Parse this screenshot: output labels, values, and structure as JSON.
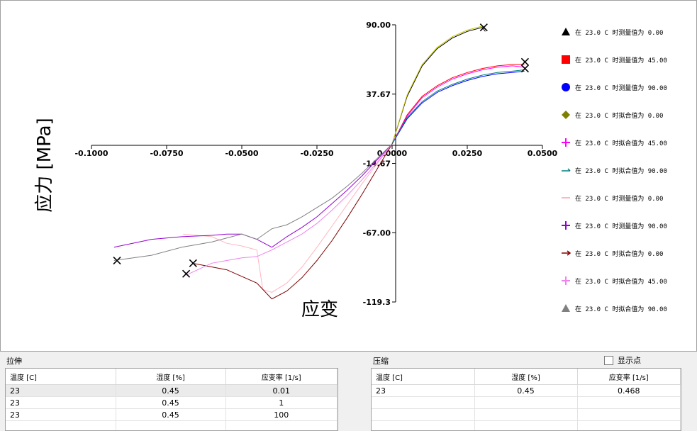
{
  "chart": {
    "ylabel": "应力 [MPa]",
    "xlabel": "应变",
    "x_ticks": [
      "-0.1000",
      "-0.0750",
      "-0.0500",
      "-0.0250",
      "0.0000",
      "0.0250",
      "0.0500"
    ],
    "y_ticks": [
      "90.00",
      "37.67",
      "-14.67",
      "-67.00",
      "-119.3"
    ]
  },
  "legend": [
    {
      "label": "在 23.0 C 时测量值为 0.00",
      "marker": "triangle",
      "color": "#000000"
    },
    {
      "label": "在 23.0 C 时测量值为 45.00",
      "marker": "square",
      "color": "#ff0000"
    },
    {
      "label": "在 23.0 C 时测量值为 90.00",
      "marker": "circle",
      "color": "#0000ff"
    },
    {
      "label": "在 23.0 C 时拟合值为 0.00",
      "marker": "diamond",
      "color": "#808000"
    },
    {
      "label": "在 23.0 C 时拟合值为 45.00",
      "marker": "plus",
      "color": "#ff00ff"
    },
    {
      "label": "在 23.0 C 时拟合值为 90.00",
      "marker": "dash",
      "color": "#008080"
    },
    {
      "label": "在 23.0 C 时测量值为 0.00",
      "marker": "line",
      "color": "#ffb6c1"
    },
    {
      "label": "在 23.0 C 时测量值为 90.00",
      "marker": "plus",
      "color": "#9400d3"
    },
    {
      "label": "在 23.0 C 时拟合值为 0.00",
      "marker": "arrow",
      "color": "#800000"
    },
    {
      "label": "在 23.0 C 时拟合值为 45.00",
      "marker": "plus",
      "color": "#ee82ee"
    },
    {
      "label": "在 23.0 C 时拟合值为 90.00",
      "marker": "triangle",
      "color": "#808080"
    }
  ],
  "chart_data": {
    "type": "line",
    "title": "",
    "xlabel": "应变",
    "ylabel": "应力 [MPa]",
    "xlim": [
      -0.1,
      0.05
    ],
    "ylim": [
      -119.3,
      90.0
    ],
    "grid": false,
    "legend_position": "right",
    "series": [
      {
        "name": "在 23.0 C 时测量值为 0.00",
        "color": "#000000",
        "x": [
          0,
          0.005,
          0.01,
          0.015,
          0.02,
          0.025,
          0.03,
          0.031
        ],
        "y": [
          0,
          36,
          59,
          72,
          80,
          85,
          88,
          85
        ]
      },
      {
        "name": "在 23.0 C 时拟合值为 0.00",
        "color": "#c8c800",
        "x": [
          0,
          0.005,
          0.01,
          0.015,
          0.02,
          0.025,
          0.03
        ],
        "y": [
          0,
          37,
          60,
          73,
          81,
          86,
          89
        ]
      },
      {
        "name": "在 23.0 C 时测量值为 45.00",
        "color": "#ff0000",
        "x": [
          0,
          0.005,
          0.01,
          0.015,
          0.02,
          0.025,
          0.03,
          0.035,
          0.04,
          0.044
        ],
        "y": [
          0,
          22,
          36,
          44,
          50,
          54,
          57,
          59,
          60,
          60
        ]
      },
      {
        "name": "在 23.0 C 时拟合值为 45.00",
        "color": "#ff00ff",
        "x": [
          0,
          0.005,
          0.01,
          0.015,
          0.02,
          0.025,
          0.03,
          0.035,
          0.04,
          0.044
        ],
        "y": [
          0,
          21,
          35,
          43,
          49,
          53,
          56,
          58,
          59,
          58
        ]
      },
      {
        "name": "在 23.0 C 时测量值为 90.00",
        "color": "#0000ff",
        "x": [
          0,
          0.005,
          0.01,
          0.015,
          0.02,
          0.025,
          0.03,
          0.035,
          0.04,
          0.044
        ],
        "y": [
          0,
          19,
          31,
          39,
          44,
          48,
          51,
          53,
          54,
          55
        ]
      },
      {
        "name": "在 23.0 C 时拟合值为 90.00",
        "color": "#008080",
        "x": [
          0,
          0.005,
          0.01,
          0.015,
          0.02,
          0.025,
          0.03,
          0.035,
          0.04,
          0.044
        ],
        "y": [
          0,
          20,
          32,
          40,
          45,
          49,
          52,
          54,
          55,
          56
        ]
      },
      {
        "name": "在 23.0 C 时测量值为 0.00",
        "color": "#ffb6c1",
        "x": [
          0,
          -0.005,
          -0.01,
          -0.015,
          -0.02,
          -0.025,
          -0.03,
          -0.035,
          -0.04,
          -0.043,
          -0.045,
          -0.05,
          -0.055,
          -0.06,
          -0.0695
        ],
        "y": [
          0,
          -15,
          -30,
          -46,
          -62,
          -78,
          -93,
          -105,
          -112,
          -110,
          -80,
          -77,
          -75,
          -70,
          -68
        ]
      },
      {
        "name": "在 23.0 C 时测量值为 90.00",
        "color": "#9400d3",
        "x": [
          0,
          -0.005,
          -0.01,
          -0.015,
          -0.02,
          -0.025,
          -0.03,
          -0.035,
          -0.04,
          -0.045,
          -0.05,
          -0.055,
          -0.06,
          -0.07,
          -0.08,
          -0.0925
        ],
        "y": [
          0,
          -12,
          -24,
          -35,
          -45,
          -55,
          -63,
          -70,
          -78,
          -72,
          -68,
          -68,
          -69,
          -70,
          -72,
          -78
        ]
      },
      {
        "name": "在 23.0 C 时拟合值为 0.00",
        "color": "#800000",
        "x": [
          0,
          -0.005,
          -0.01,
          -0.015,
          -0.02,
          -0.025,
          -0.03,
          -0.035,
          -0.04,
          -0.045,
          -0.05,
          -0.055,
          -0.0665
        ],
        "y": [
          0,
          -19,
          -38,
          -56,
          -73,
          -88,
          -101,
          -111,
          -117,
          -105,
          -100,
          -95,
          -90
        ]
      },
      {
        "name": "在 23.0 C 时拟合值为 45.00",
        "color": "#ee82ee",
        "x": [
          0,
          -0.005,
          -0.01,
          -0.015,
          -0.02,
          -0.025,
          -0.03,
          -0.035,
          -0.04,
          -0.045,
          -0.05,
          -0.055,
          -0.06,
          -0.0685
        ],
        "y": [
          0,
          -14,
          -27,
          -39,
          -50,
          -60,
          -68,
          -74,
          -80,
          -85,
          -86,
          -88,
          -90,
          -99
        ]
      },
      {
        "name": "在 23.0 C 时拟合值为 90.00",
        "color": "#808080",
        "x": [
          0,
          -0.005,
          -0.01,
          -0.015,
          -0.02,
          -0.025,
          -0.03,
          -0.035,
          -0.04,
          -0.045,
          -0.05,
          -0.06,
          -0.07,
          -0.08,
          -0.0925
        ],
        "y": [
          0,
          -11,
          -22,
          -32,
          -41,
          -48,
          -55,
          -61,
          -64,
          -72,
          -68,
          -74,
          -78,
          -84,
          -88
        ]
      }
    ],
    "end_markers": [
      {
        "x": 0.0305,
        "y": 88
      },
      {
        "x": 0.0442,
        "y": 62
      },
      {
        "x": 0.0442,
        "y": 57
      },
      {
        "x": -0.0915,
        "y": -88
      },
      {
        "x": -0.0662,
        "y": -90
      },
      {
        "x": -0.0685,
        "y": -98
      }
    ]
  },
  "tension": {
    "label": "拉伸",
    "columns": [
      "温度 [C]",
      "湿度 [%]",
      "应变率 [1/s]"
    ],
    "rows": [
      [
        "23",
        "0.45",
        "0.01"
      ],
      [
        "23",
        "0.45",
        "1"
      ],
      [
        "23",
        "0.45",
        "100"
      ]
    ]
  },
  "compression": {
    "label": "压缩",
    "columns": [
      "温度 [C]",
      "湿度 [%]",
      "应变率 [1/s]"
    ],
    "rows": [
      [
        "23",
        "0.45",
        "0.468"
      ]
    ]
  },
  "show_points": {
    "label": "显示点",
    "checked": false
  }
}
